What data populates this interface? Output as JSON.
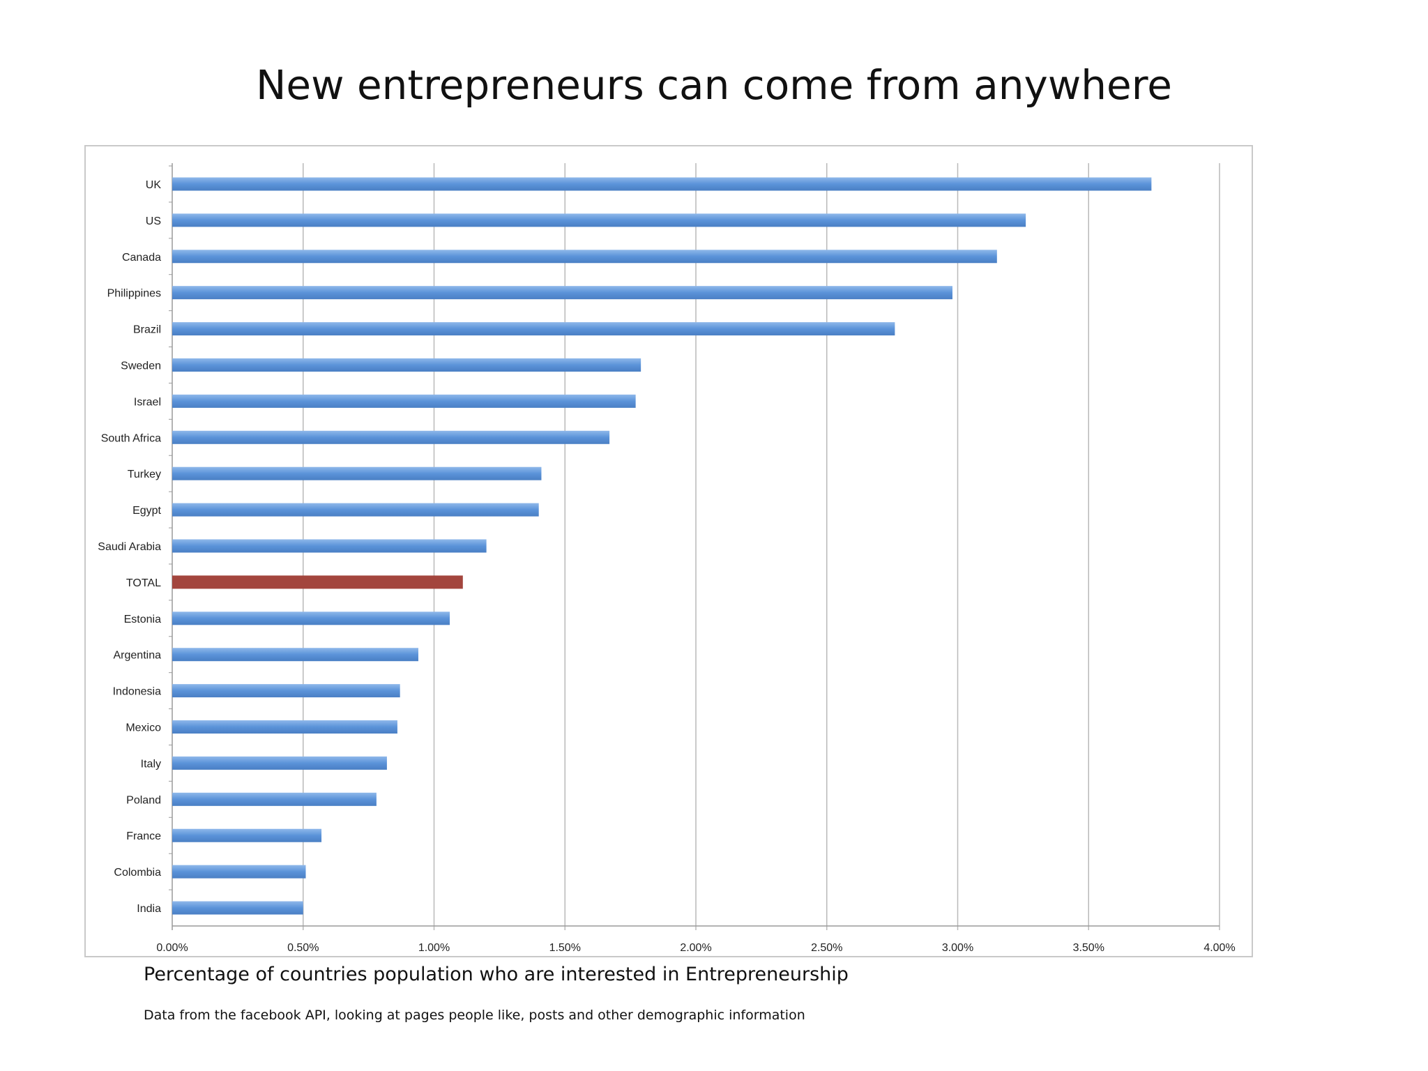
{
  "slide": {
    "title": "New entrepreneurs can come from anywhere",
    "caption": "Percentage of countries population who are interested in Entrepreneurship",
    "source_note": "Data from the facebook API, looking at pages people like, posts and other demographic information"
  },
  "chart_data": {
    "type": "bar",
    "orientation": "horizontal",
    "categories": [
      "UK",
      "US",
      "Canada",
      "Philippines",
      "Brazil",
      "Sweden",
      "Israel",
      "South Africa",
      "Turkey",
      "Egypt",
      "Saudi Arabia",
      "TOTAL",
      "Estonia",
      "Argentina",
      "Indonesia",
      "Mexico",
      "Italy",
      "Poland",
      "France",
      "Colombia",
      "India"
    ],
    "values": [
      3.74,
      3.26,
      3.15,
      2.98,
      2.76,
      1.79,
      1.77,
      1.67,
      1.41,
      1.4,
      1.2,
      1.11,
      1.06,
      0.94,
      0.87,
      0.86,
      0.82,
      0.78,
      0.57,
      0.51,
      0.5
    ],
    "unit": "%",
    "xlim": [
      0,
      4.0
    ],
    "xticks": [
      "0.00%",
      "0.50%",
      "1.00%",
      "1.50%",
      "2.00%",
      "2.50%",
      "3.00%",
      "3.50%",
      "4.00%"
    ],
    "grid": "vertical",
    "legend": "none",
    "colors": {
      "bar": "#5b93d9",
      "bar_highlight": "#a3453d",
      "highlight_category": "TOTAL",
      "grid": "#b9b9b9"
    }
  }
}
